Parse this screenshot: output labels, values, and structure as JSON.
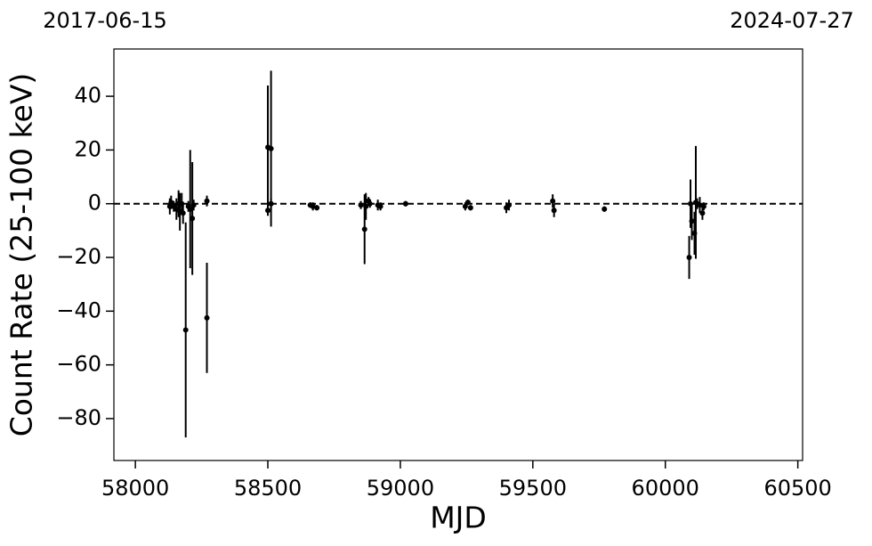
{
  "chart_data": {
    "type": "errorbar",
    "top_left_label": "2017-06-15",
    "top_right_label": "2024-07-27",
    "xlabel": "MJD",
    "ylabel": "Count Rate (25-100 keV)",
    "xlim": [
      57919,
      60518
    ],
    "ylim": [
      -95.6,
      57.6
    ],
    "xticks": [
      58000,
      58500,
      59000,
      59500,
      60000,
      60500
    ],
    "yticks": [
      {
        "value": -80,
        "label": "−80"
      },
      {
        "value": -60,
        "label": "−60"
      },
      {
        "value": -40,
        "label": "−40"
      },
      {
        "value": -20,
        "label": "−20"
      },
      0,
      20,
      40
    ],
    "hline": 0,
    "series": [
      {
        "color": "#000000",
        "x": [
          58130,
          58135,
          58145,
          58155,
          58163,
          58168,
          58175,
          58180,
          58190,
          58200,
          58207,
          58215,
          58220,
          58270,
          58270,
          58500,
          58500,
          58512,
          58512,
          58660,
          58670,
          58685,
          58851,
          58865,
          58870,
          58880,
          58885,
          58915,
          58925,
          59020,
          59245,
          59255,
          59265,
          59400,
          59410,
          59575,
          59580,
          59770,
          60090,
          60095,
          60100,
          60110,
          60115,
          60120,
          60130,
          60140,
          60145
        ],
        "values": [
          -1,
          0.5,
          -1,
          -2,
          0,
          -3,
          0,
          -3.5,
          -47,
          -1,
          -2,
          -5.5,
          -0.5,
          1,
          -42.5,
          21,
          -2.5,
          20.5,
          0,
          -0.5,
          -1,
          -1.5,
          -0.5,
          -9.5,
          -1,
          1,
          0,
          -0.5,
          -1,
          0,
          -1,
          0.5,
          -1.5,
          -1.5,
          -0.5,
          1,
          -2.5,
          -2,
          -20,
          0,
          -6.5,
          -11,
          0.5,
          0,
          -0.5,
          -3.5,
          -1
        ],
        "errors": [
          3,
          2.5,
          2,
          4,
          5,
          7,
          4,
          4,
          40,
          2,
          22,
          21,
          2,
          2,
          20.5,
          23,
          2,
          29,
          2,
          1,
          1.5,
          1,
          1.5,
          13,
          5,
          1.5,
          1.5,
          2,
          1.5,
          1,
          1.5,
          1,
          1,
          2,
          2,
          2.5,
          2.5,
          1,
          8,
          9,
          7,
          8,
          21,
          2,
          3,
          2.5,
          1.5
        ]
      }
    ]
  }
}
